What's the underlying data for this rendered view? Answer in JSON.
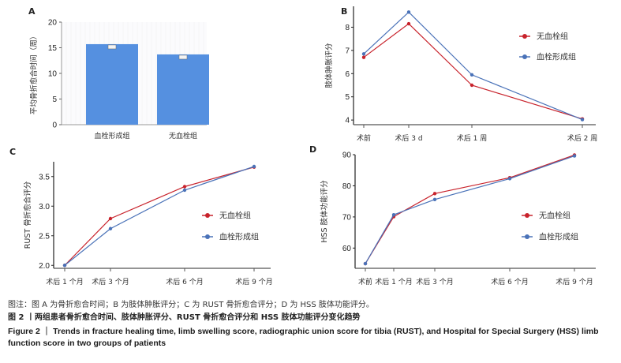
{
  "colors": {
    "bar": "#5590e0",
    "red": "#c8232c",
    "blue": "#4a72b8",
    "axis": "#222222",
    "grid": "#eeeeee"
  },
  "chart_data": [
    {
      "panel": "A",
      "type": "bar",
      "title": "",
      "xlabel": "",
      "ylabel": "平均骨折愈合时间（周）",
      "categories": [
        "血栓形成组",
        "无血栓组"
      ],
      "values": [
        15.7,
        13.7
      ],
      "ylim": [
        0,
        20
      ],
      "yticks": [
        0,
        5,
        10,
        15,
        20
      ],
      "grid": true
    },
    {
      "panel": "B",
      "type": "line",
      "ylabel": "肢体肿胀评分",
      "categories": [
        "术前",
        "术后 3 d",
        "术后 1 周",
        "术后 2 周"
      ],
      "ylim": [
        3.8,
        8.9
      ],
      "yticks": [
        4,
        5,
        6,
        7,
        8
      ],
      "legend": "right",
      "series": [
        {
          "name": "无血栓组",
          "color": "#c8232c",
          "values": [
            6.7,
            8.15,
            5.5,
            4.05
          ]
        },
        {
          "name": "血栓形成组",
          "color": "#4a72b8",
          "values": [
            6.85,
            8.65,
            5.95,
            4.02
          ]
        }
      ]
    },
    {
      "panel": "C",
      "type": "line",
      "ylabel": "RUST 骨折愈合评分",
      "categories": [
        "术后 1 个月",
        "术后 3 个月",
        "术后 6 个月",
        "术后 9 个月"
      ],
      "ylim": [
        1.95,
        3.75
      ],
      "yticks": [
        2.0,
        2.5,
        3.0,
        3.5
      ],
      "legend": "right",
      "series": [
        {
          "name": "无血栓组",
          "color": "#c8232c",
          "values": [
            2.0,
            2.79,
            3.33,
            3.66
          ]
        },
        {
          "name": "血栓形成组",
          "color": "#4a72b8",
          "values": [
            2.0,
            2.62,
            3.27,
            3.67
          ]
        }
      ]
    },
    {
      "panel": "D",
      "type": "line",
      "ylabel": "HSS 肢体功能评分",
      "categories": [
        "术前",
        "术后 1 个月",
        "术后 3 个月",
        "术后 6 个月",
        "术后 9 个月"
      ],
      "ylim": [
        53.5,
        90
      ],
      "yticks": [
        60,
        70,
        80,
        90
      ],
      "legend": "right",
      "series": [
        {
          "name": "无血栓组",
          "color": "#c8232c",
          "values": [
            55.0,
            70.1,
            77.5,
            82.6,
            89.9
          ]
        },
        {
          "name": "血栓形成组",
          "color": "#4a72b8",
          "values": [
            55.0,
            70.7,
            75.6,
            82.3,
            89.6
          ]
        }
      ]
    }
  ],
  "caption": {
    "note": "图注：图 A 为骨折愈合时间；B 为肢体肿胀评分；C 为 RUST 骨折愈合评分；D 为 HSS 肢体功能评分。",
    "title_cn": "图 2 丨两组患者骨折愈合时间、肢体肿胀评分、RUST 骨折愈合评分和 HSS 肢体功能评分变化趋势",
    "title_en": "Figure 2 ｜ Trends in fracture healing time, limb swelling score, radiographic union score for tibia (RUST), and Hospital for Special Surgery (HSS) limb function score in two groups of patients"
  }
}
